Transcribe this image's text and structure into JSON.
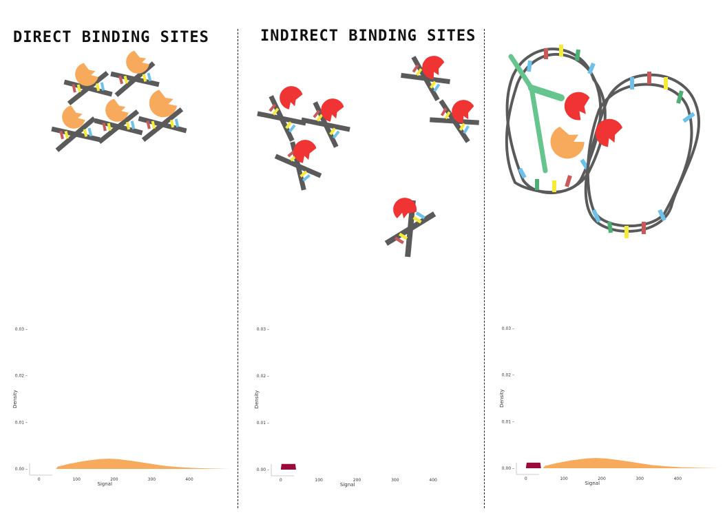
{
  "panels": {
    "direct": {
      "title": "DIRECT BINDING SITES"
    },
    "indirect": {
      "title": "INDIRECT BINDING SITES"
    },
    "looping": {
      "title": ""
    }
  },
  "colors": {
    "dna_strand": "#5a5a5a",
    "base_red": "#c85a5a",
    "base_blue": "#6ec1e8",
    "base_yellow": "#f5ec3a",
    "base_green": "#4caf73",
    "direct_factor": "#f7a95c",
    "indirect_factor": "#f03333",
    "cofactor": "#66c48e",
    "density_fill": "#f7a95c",
    "density_peak_fill": "#9a0a3c"
  },
  "icons": [
    "dna-helix-icon",
    "orange-transcription-factor-icon",
    "red-transcription-factor-icon",
    "green-cofactor-icon",
    "dna-loop-icon"
  ],
  "chart_data": [
    {
      "type": "area",
      "panel": "direct",
      "xlabel": "Signal",
      "ylabel": "Density",
      "x_ticks": [
        "0",
        "100",
        "200",
        "300",
        "400"
      ],
      "y_ticks": [
        "0.00",
        "0.01",
        "0.02",
        "0.03"
      ],
      "xlim": [
        -25,
        510
      ],
      "ylim": [
        0,
        0.03
      ],
      "series": [
        {
          "color": "#f7a95c",
          "x": [
            45,
            50,
            80,
            120,
            160,
            185,
            210,
            250,
            290,
            330,
            370,
            410,
            450,
            490,
            510
          ],
          "y": [
            0,
            0.0005,
            0.0011,
            0.0017,
            0.0021,
            0.0022,
            0.0021,
            0.0017,
            0.0012,
            0.0007,
            0.0004,
            0.0002,
            0.0001,
            3e-05,
            0
          ]
        }
      ]
    },
    {
      "type": "area",
      "panel": "indirect",
      "xlabel": "Signal",
      "ylabel": "Density",
      "x_ticks": [
        "0",
        "100",
        "200",
        "300",
        "400"
      ],
      "y_ticks": [
        "0.00",
        "0.01",
        "0.02",
        "0.03"
      ],
      "xlim": [
        -25,
        510
      ],
      "ylim": [
        0,
        0.03
      ],
      "series": [
        {
          "color": "#9a0a3c",
          "x": [
            0,
            2,
            38,
            40
          ],
          "y": [
            0,
            0.0012,
            0.0012,
            0
          ]
        }
      ]
    },
    {
      "type": "area",
      "panel": "looping",
      "xlabel": "Signal",
      "ylabel": "Density",
      "x_ticks": [
        "0",
        "100",
        "200",
        "300",
        "400"
      ],
      "y_ticks": [
        "0.00",
        "0.01",
        "0.02",
        "0.03"
      ],
      "xlim": [
        -25,
        510
      ],
      "ylim": [
        0,
        0.03
      ],
      "series": [
        {
          "color": "#f7a95c",
          "x": [
            45,
            50,
            80,
            120,
            160,
            185,
            210,
            250,
            290,
            330,
            370,
            410,
            450,
            490,
            510
          ],
          "y": [
            0,
            0.0005,
            0.0011,
            0.0017,
            0.0021,
            0.0022,
            0.0021,
            0.0017,
            0.0012,
            0.0007,
            0.0004,
            0.0002,
            0.0001,
            3e-05,
            0
          ]
        },
        {
          "color": "#9a0a3c",
          "x": [
            0,
            2,
            38,
            40
          ],
          "y": [
            0,
            0.0012,
            0.0012,
            0
          ]
        }
      ]
    }
  ]
}
